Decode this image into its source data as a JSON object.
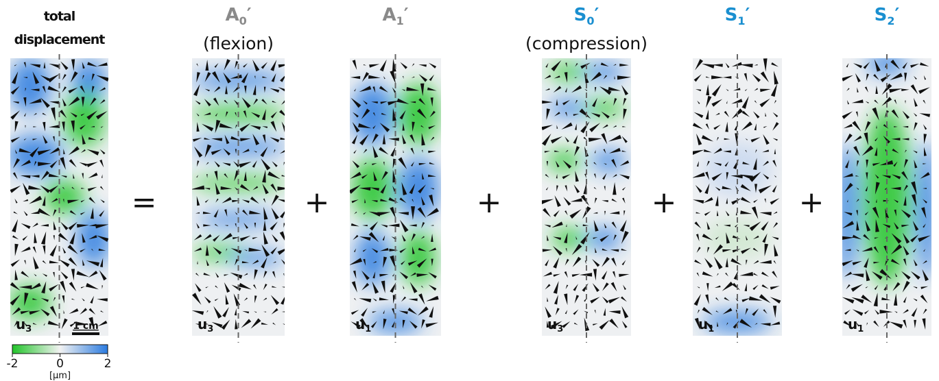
{
  "panels": [
    {
      "title_lines": [
        "total",
        "displacement"
      ],
      "component": "u",
      "component_index": "3"
    },
    {
      "symbol": "A",
      "index": "0",
      "prime": "′",
      "caption": "(flexion)",
      "component": "u",
      "component_index": "3"
    },
    {
      "symbol": "A",
      "index": "1",
      "prime": "′",
      "component": "u",
      "component_index": "1"
    },
    {
      "symbol": "S",
      "index": "0",
      "prime": "′",
      "caption": "(compression)",
      "component": "u",
      "component_index": "3"
    },
    {
      "symbol": "S",
      "index": "1",
      "prime": "′",
      "component": "u",
      "component_index": "1"
    },
    {
      "symbol": "S",
      "index": "2",
      "prime": "′",
      "component": "u",
      "component_index": "1"
    }
  ],
  "operators": [
    "=",
    "+",
    "+",
    "+",
    "+"
  ],
  "scale_bar": "1 cm",
  "colorbar": {
    "clim": [
      -2,
      2
    ],
    "ticks": [
      -2,
      0,
      2
    ],
    "unit": "[µm]"
  }
}
